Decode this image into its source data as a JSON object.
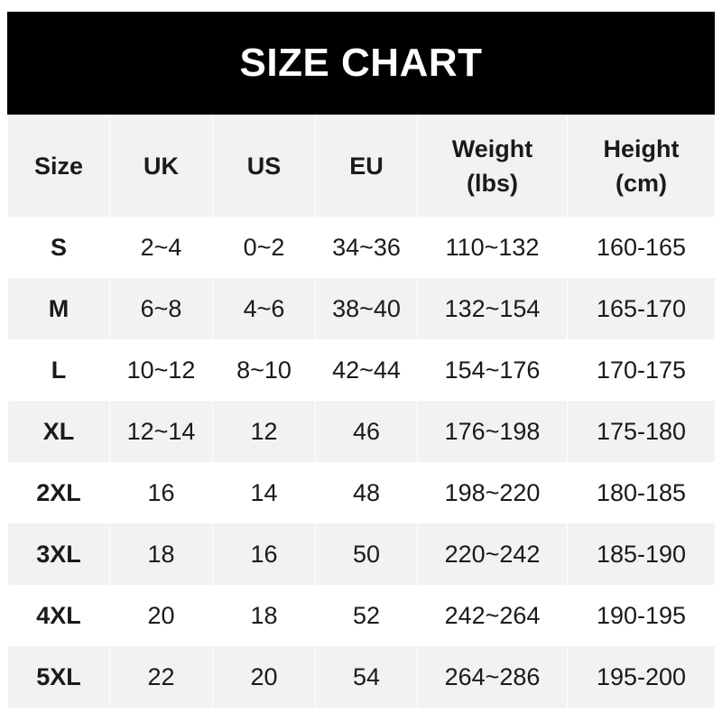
{
  "title": "SIZE CHART",
  "columns": [
    {
      "line1": "Size",
      "line2": ""
    },
    {
      "line1": "UK",
      "line2": ""
    },
    {
      "line1": "US",
      "line2": ""
    },
    {
      "line1": "EU",
      "line2": ""
    },
    {
      "line1": "Weight",
      "line2": "(lbs)"
    },
    {
      "line1": "Height",
      "line2": "(cm)"
    }
  ],
  "rows": [
    [
      "S",
      "2~4",
      "0~2",
      "34~36",
      "110~132",
      "160-165"
    ],
    [
      "M",
      "6~8",
      "4~6",
      "38~40",
      "132~154",
      "165-170"
    ],
    [
      "L",
      "10~12",
      "8~10",
      "42~44",
      "154~176",
      "170-175"
    ],
    [
      "XL",
      "12~14",
      "12",
      "46",
      "176~198",
      "175-180"
    ],
    [
      "2XL",
      "16",
      "14",
      "48",
      "198~220",
      "180-185"
    ],
    [
      "3XL",
      "18",
      "16",
      "50",
      "220~242",
      "185-190"
    ],
    [
      "4XL",
      "20",
      "18",
      "52",
      "242~264",
      "190-195"
    ],
    [
      "5XL",
      "22",
      "20",
      "54",
      "264~286",
      "195-200"
    ]
  ],
  "colors": {
    "header_bg": "#000000",
    "alt_row_bg": "#f2f2f2"
  }
}
